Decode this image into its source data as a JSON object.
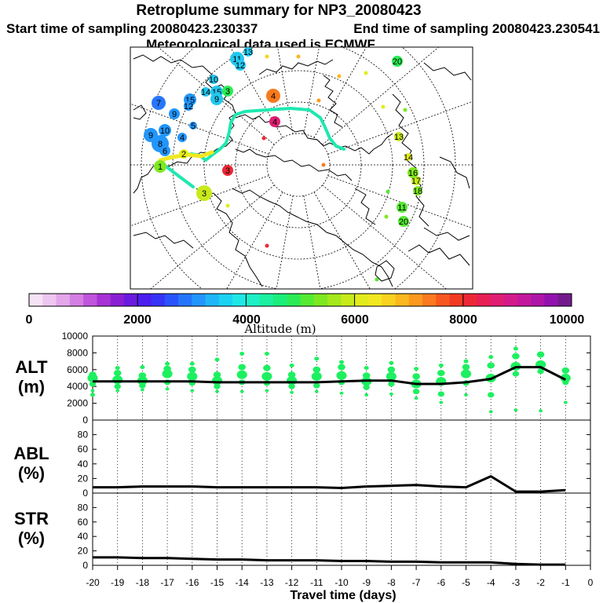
{
  "header": {
    "title": "Retroplume summary for NP3_20080423",
    "start_label": "Start time of sampling 20080423.230337",
    "end_label": "End time of sampling 20080423.230541",
    "met_label": "Meteorological data used is ECMWF"
  },
  "colorbar": {
    "label": "Altitude (m)",
    "ticks": [
      "0",
      "2000",
      "4000",
      "6000",
      "8000",
      "10000"
    ],
    "min": 0,
    "max": 10000,
    "colors": [
      "#f6e3f6",
      "#eec6f0",
      "#e3a6ea",
      "#d47fe3",
      "#c155dd",
      "#a832d5",
      "#8b1fd4",
      "#6b1be0",
      "#4c1ff0",
      "#3733f8",
      "#2b54fc",
      "#2676fc",
      "#2296fb",
      "#1eb6f8",
      "#1bd2f3",
      "#1ee8e6",
      "#1df0c7",
      "#1cf0a1",
      "#1bee7a",
      "#2bec55",
      "#56ea33",
      "#7ee820",
      "#a5e81c",
      "#c7ea1b",
      "#e2ec1d",
      "#f2e81f",
      "#f8d21f",
      "#fab81e",
      "#fb9a1e",
      "#fb7a1f",
      "#f8581f",
      "#f43a22",
      "#ee2736",
      "#e61f55",
      "#e01d72",
      "#d41a8b",
      "#c3189d",
      "#ae16a9",
      "#9212ae",
      "#721a8d"
    ]
  },
  "map": {
    "trajectory_color": "#1ee8b0",
    "labels": [
      {
        "t": "11",
        "c": "#22c7f0"
      },
      {
        "t": "13",
        "c": "#22c7f0"
      },
      {
        "t": "12",
        "c": "#22c7f0"
      },
      {
        "t": "10",
        "c": "#22c7f0"
      },
      {
        "t": "15",
        "c": "#22c7f0"
      },
      {
        "t": "14",
        "c": "#22c7f0"
      },
      {
        "t": "9",
        "c": "#22c7f0"
      },
      {
        "t": "7",
        "c": "#2676fc"
      },
      {
        "t": "9",
        "c": "#2296fb"
      },
      {
        "t": "15",
        "c": "#2296fb"
      },
      {
        "t": "12",
        "c": "#2296fb"
      },
      {
        "t": "10",
        "c": "#2296fb"
      },
      {
        "t": "9",
        "c": "#2296fb"
      },
      {
        "t": "8",
        "c": "#2296fb"
      },
      {
        "t": "6",
        "c": "#2296fb"
      },
      {
        "t": "5",
        "c": "#2296fb"
      },
      {
        "t": "4",
        "c": "#2296fb"
      },
      {
        "t": "3",
        "c": "#c7ea1b"
      },
      {
        "t": "4",
        "c": "#f87a1f"
      },
      {
        "t": "3",
        "c": "#2bec55"
      },
      {
        "t": "20",
        "c": "#2bec55"
      },
      {
        "t": "13",
        "c": "#c7ea1b"
      },
      {
        "t": "17",
        "c": "#c7ea1b"
      },
      {
        "t": "16",
        "c": "#7ee820"
      },
      {
        "t": "18",
        "c": "#7ee820"
      },
      {
        "t": "11",
        "c": "#56ea33"
      },
      {
        "t": "20",
        "c": "#56ea33"
      },
      {
        "t": "14",
        "c": "#e2ec1d"
      },
      {
        "t": "2",
        "c": "#e2ec1d"
      },
      {
        "t": "1",
        "c": "#7ee820"
      },
      {
        "t": "3",
        "c": "#ee2736"
      },
      {
        "t": "4",
        "c": "#e01d72"
      }
    ]
  },
  "panels": [
    {
      "label_line1": "ALT",
      "label_line2": "(m)"
    },
    {
      "label_line1": "ABL",
      "label_line2": "(%)"
    },
    {
      "label_line1": "STR",
      "label_line2": "(%)"
    }
  ],
  "xlabel": "Travel time (days)",
  "chart_data": [
    {
      "type": "line",
      "title": "ALT",
      "xlabel": "Travel time (days)",
      "ylabel": "ALT (m)",
      "x": [
        -20,
        -19,
        -18,
        -17,
        -16,
        -15,
        -14,
        -13,
        -12,
        -11,
        -10,
        -9,
        -8,
        -7,
        -6,
        -5,
        -4,
        -3,
        -2,
        -1
      ],
      "y": [
        4600,
        4600,
        4600,
        4600,
        4600,
        4500,
        4500,
        4500,
        4500,
        4500,
        4600,
        4700,
        4700,
        4300,
        4300,
        4500,
        4900,
        6300,
        6300,
        4800
      ],
      "xlim": [
        -20,
        0
      ],
      "ylim": [
        0,
        10000
      ],
      "yticks": [
        0,
        2000,
        4000,
        6000,
        8000,
        10000
      ],
      "scatter_color": "#1df060",
      "scatter": [
        {
          "x": -20,
          "ys": [
            3500,
            4300,
            5000,
            5400,
            3000
          ]
        },
        {
          "x": -19,
          "ys": [
            3500,
            4000,
            4800,
            5600,
            6200
          ]
        },
        {
          "x": -18,
          "ys": [
            3600,
            4100,
            4700,
            5300,
            6300
          ]
        },
        {
          "x": -17,
          "ys": [
            3700,
            4500,
            5500,
            6100,
            6700
          ]
        },
        {
          "x": -16,
          "ys": [
            3500,
            4400,
            5200,
            6000,
            6700
          ]
        },
        {
          "x": -15,
          "ys": [
            3400,
            4000,
            4700,
            5400,
            7200
          ]
        },
        {
          "x": -14,
          "ys": [
            3400,
            4500,
            5400,
            6300,
            7900
          ]
        },
        {
          "x": -13,
          "ys": [
            3500,
            4400,
            5200,
            6200,
            7900
          ]
        },
        {
          "x": -12,
          "ys": [
            3300,
            4000,
            4700,
            5400,
            6500
          ]
        },
        {
          "x": -11,
          "ys": [
            3400,
            4100,
            5200,
            6000,
            7300
          ]
        },
        {
          "x": -10,
          "ys": [
            3200,
            4500,
            5300,
            6300,
            6900
          ]
        },
        {
          "x": -9,
          "ys": [
            3000,
            3900,
            4600,
            5300,
            6200
          ]
        },
        {
          "x": -8,
          "ys": [
            3100,
            4300,
            5200,
            6000,
            6800
          ]
        },
        {
          "x": -7,
          "ys": [
            2600,
            3400,
            4300,
            5200,
            6100
          ]
        },
        {
          "x": -6,
          "ys": [
            2100,
            3100,
            4600,
            5600,
            6500
          ]
        },
        {
          "x": -5,
          "ys": [
            3000,
            4400,
            5500,
            6300,
            7000
          ]
        },
        {
          "x": -4,
          "ys": [
            1000,
            3000,
            5000,
            6500,
            7500
          ]
        },
        {
          "x": -3,
          "ys": [
            1200,
            5500,
            6400,
            7600,
            8500
          ]
        },
        {
          "x": -2,
          "ys": [
            1100,
            5800,
            6600,
            7800
          ]
        },
        {
          "x": -1,
          "ys": [
            2100,
            4500,
            5000,
            5900
          ]
        }
      ]
    },
    {
      "type": "line",
      "title": "ABL",
      "ylabel": "ABL (%)",
      "x": [
        -20,
        -19,
        -18,
        -17,
        -16,
        -15,
        -14,
        -13,
        -12,
        -11,
        -10,
        -9,
        -8,
        -7,
        -6,
        -5,
        -4,
        -3,
        -2,
        -1
      ],
      "y": [
        8,
        8,
        9,
        9,
        9,
        8,
        8,
        8,
        8,
        8,
        7,
        9,
        10,
        11,
        9,
        8,
        23,
        2,
        2,
        4
      ],
      "xlim": [
        -20,
        0
      ],
      "ylim": [
        0,
        100
      ],
      "yticks": [
        0,
        20,
        40,
        60,
        80
      ]
    },
    {
      "type": "line",
      "title": "STR",
      "ylabel": "STR (%)",
      "x": [
        -20,
        -19,
        -18,
        -17,
        -16,
        -15,
        -14,
        -13,
        -12,
        -11,
        -10,
        -9,
        -8,
        -7,
        -6,
        -5,
        -4,
        -3,
        -2,
        -1
      ],
      "y": [
        11,
        11,
        10,
        10,
        9,
        8,
        8,
        7,
        7,
        7,
        6,
        6,
        5,
        5,
        4,
        4,
        4,
        2,
        1,
        1
      ],
      "xlim": [
        -20,
        0
      ],
      "ylim": [
        0,
        100
      ],
      "yticks": [
        0,
        20,
        40,
        60,
        80
      ]
    }
  ],
  "x_ticks": [
    "-20",
    "-19",
    "-18",
    "-17",
    "-16",
    "-15",
    "-14",
    "-13",
    "-12",
    "-11",
    "-10",
    "-9",
    "-8",
    "-7",
    "-6",
    "-5",
    "-4",
    "-3",
    "-2",
    "-1",
    "0"
  ]
}
